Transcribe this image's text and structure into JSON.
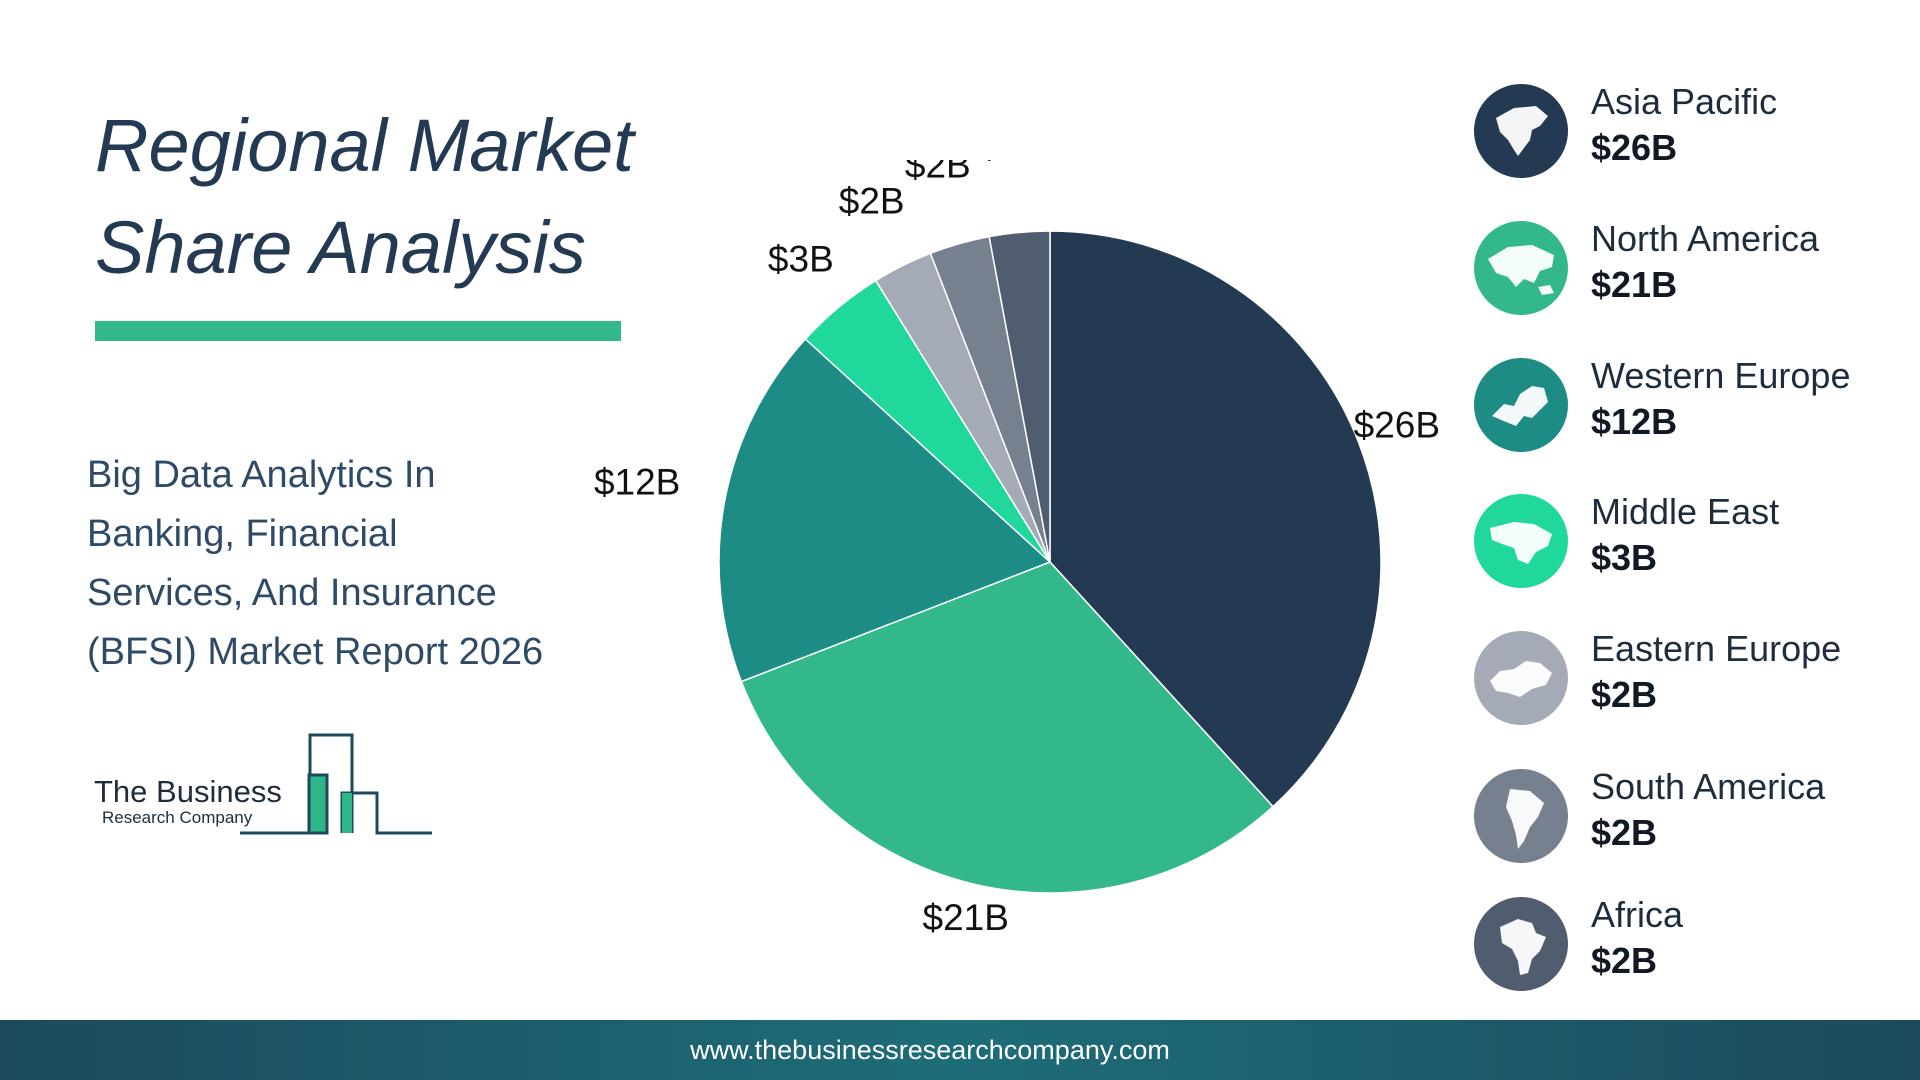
{
  "header": {
    "title": "Regional Market Share Analysis",
    "title_lines": [
      "Regional Market",
      "Share Analysis"
    ]
  },
  "report": {
    "subtitle_lines": [
      "Big Data Analytics In",
      "Banking, Financial",
      "Services, And Insurance",
      "(BFSI) Market Report 2026"
    ]
  },
  "logo": {
    "line1": "The Business",
    "line2": "Research Company"
  },
  "footer": {
    "url": "www.thebusinessresearchcompany.com"
  },
  "colors": {
    "accent": "#33b88c",
    "title": "#243a52",
    "footer": "#1d6d78"
  },
  "chart_data": {
    "type": "pie",
    "categories": [
      "Asia Pacific",
      "North America",
      "Western Europe",
      "Middle East",
      "Eastern Europe",
      "South America",
      "Africa"
    ],
    "values": [
      26,
      21,
      12,
      3,
      2,
      2,
      2
    ],
    "labels": [
      "$26B",
      "$21B",
      "$12B",
      "$3B",
      "$2B",
      "$2B",
      "$2B"
    ],
    "colors": [
      "#243a52",
      "#33b88c",
      "#1c8c84",
      "#20d89c",
      "#a5abb6",
      "#76808f",
      "#4f5d6e"
    ],
    "icons": [
      "north-america-map-icon",
      "asia-map-icon",
      "europe-map-icon",
      "middle-east-map-icon",
      "eastern-europe-map-icon",
      "south-america-map-icon",
      "africa-map-icon"
    ],
    "start": "12 o'clock",
    "direction": "clockwise",
    "legend_position": "right"
  }
}
